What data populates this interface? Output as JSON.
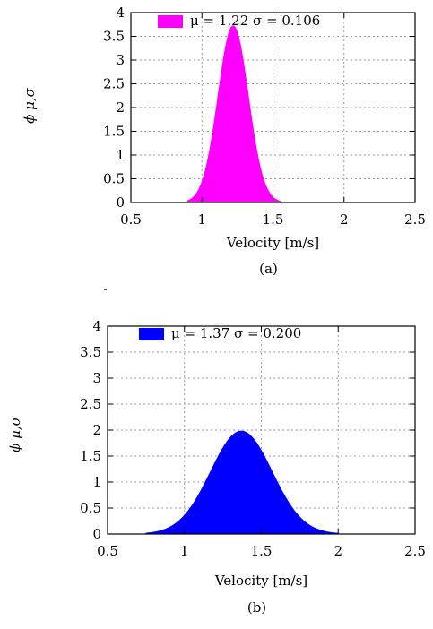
{
  "chart_data": [
    {
      "type": "area",
      "caption": "(a)",
      "xlabel": "Velocity [m/s]",
      "ylabel": "ϕ μ,σ",
      "xlim": [
        0.5,
        2.5
      ],
      "ylim": [
        0,
        4
      ],
      "xticks": [
        "0.5",
        "1",
        "1.5",
        "2",
        "2.5"
      ],
      "yticks": [
        "0",
        "0.5",
        "1",
        "1.5",
        "2",
        "2.5",
        "3",
        "3.5",
        "4"
      ],
      "grid": true,
      "legend_position": "top",
      "series": [
        {
          "name": "μ = 1.22   σ = 0.106",
          "mu": 1.22,
          "sigma": 0.106,
          "color": "#ff00ff",
          "x": [
            0.9,
            0.95,
            1.0,
            1.05,
            1.1,
            1.15,
            1.2,
            1.22,
            1.25,
            1.3,
            1.35,
            1.4,
            1.45,
            1.5,
            1.55
          ],
          "y": [
            0.04,
            0.12,
            0.45,
            1.0,
            1.95,
            2.95,
            3.65,
            3.72,
            3.55,
            2.85,
            1.95,
            0.95,
            0.35,
            0.1,
            0.02
          ]
        }
      ]
    },
    {
      "type": "area",
      "caption": "(b)",
      "xlabel": "Velocity [m/s]",
      "ylabel": "ϕ μ,σ",
      "xlim": [
        0.5,
        2.5
      ],
      "ylim": [
        0,
        4
      ],
      "xticks": [
        "0.5",
        "1",
        "1.5",
        "2",
        "2.5"
      ],
      "yticks": [
        "0",
        "0.5",
        "1",
        "1.5",
        "2",
        "2.5",
        "3",
        "3.5",
        "4"
      ],
      "grid": true,
      "legend_position": "top",
      "series": [
        {
          "name": "μ = 1.37   σ = 0.200",
          "mu": 1.37,
          "sigma": 0.2,
          "color": "#0000ff",
          "x": [
            0.75,
            0.85,
            0.95,
            1.05,
            1.15,
            1.25,
            1.3,
            1.37,
            1.45,
            1.55,
            1.65,
            1.75,
            1.85,
            1.95,
            2.0
          ],
          "y": [
            0.02,
            0.08,
            0.22,
            0.55,
            1.05,
            1.6,
            1.85,
            1.98,
            1.85,
            1.35,
            0.8,
            0.36,
            0.12,
            0.03,
            0.01
          ]
        }
      ]
    }
  ]
}
